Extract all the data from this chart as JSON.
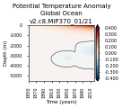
{
  "title": "Potential Temperature Anomaly",
  "subtitle": "Global Ocean",
  "run_label": "v2.c8.MIP370_01/21",
  "xlabel": "Time (years)",
  "ylabel": "Depth (m)",
  "xlim": [
    1850,
    2020
  ],
  "ylim": [
    -5500,
    0
  ],
  "yticks": [
    0,
    -1000,
    -2000,
    -3000,
    -4000,
    -5000
  ],
  "xticks": [
    1850,
    1870,
    1890,
    1910,
    1930,
    1950,
    1970,
    1990,
    2010
  ],
  "cmap": "RdBu_r",
  "vmin": -0.4,
  "vmax": 0.4,
  "colorbar_ticks": [
    0.4,
    0.3,
    0.2,
    0.1,
    0.0,
    -0.1,
    -0.2,
    -0.3,
    -0.4
  ],
  "background_color": "#ffffff",
  "title_fontsize": 5,
  "label_fontsize": 4,
  "tick_fontsize": 3.5
}
